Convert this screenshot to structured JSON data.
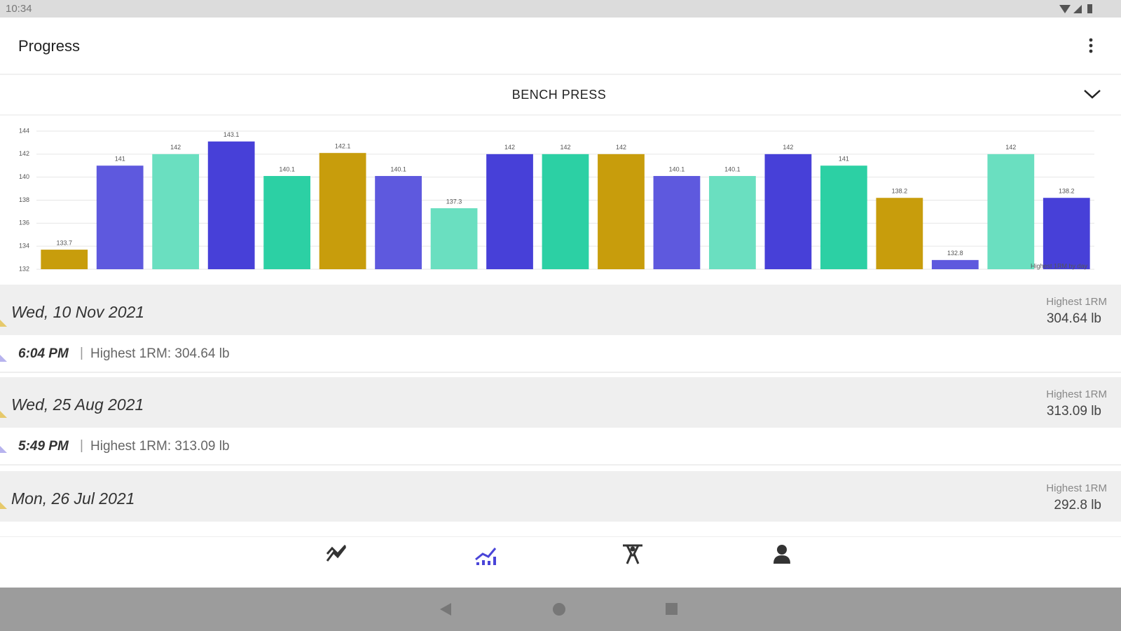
{
  "status_bar": {
    "time": "10:34"
  },
  "app_bar": {
    "title": "Progress"
  },
  "selector": {
    "label": "BENCH PRESS"
  },
  "chart_data": {
    "type": "bar",
    "categories": [
      null,
      null,
      null,
      null,
      null,
      null,
      null,
      null,
      null,
      null,
      null,
      null,
      null,
      null,
      null,
      null,
      null,
      null,
      null
    ],
    "values": [
      133.7,
      141,
      142,
      143.1,
      140.1,
      142.1,
      140.1,
      137.3,
      142,
      142,
      142,
      140.1,
      140.1,
      142,
      141,
      138.2,
      132.8,
      142,
      138.2
    ],
    "colors": [
      "#c89d0c",
      "#5e59de",
      "#6adfc0",
      "#4740d8",
      "#2cd0a4",
      "#c89d0c",
      "#5e59de",
      "#6adfc0",
      "#4740d8",
      "#2cd0a4",
      "#c89d0c",
      "#5e59de",
      "#6adfc0",
      "#4740d8",
      "#2cd0a4",
      "#c89d0c",
      "#5e59de",
      "#6adfc0",
      "#4740d8"
    ],
    "ylim": [
      132,
      144
    ],
    "yticks": [
      132,
      134,
      136,
      138,
      140,
      142,
      144
    ],
    "grid": true,
    "legend": "Highest 1RM by day"
  },
  "sessions": [
    {
      "date": "Wed, 10 Nov 2021",
      "summary_label": "Highest 1RM",
      "summary_value": "304.64 lb",
      "time": "6:04 PM",
      "detail": "Highest 1RM: 304.64 lb"
    },
    {
      "date": "Wed, 25 Aug 2021",
      "summary_label": "Highest 1RM",
      "summary_value": "313.09 lb",
      "time": "5:49 PM",
      "detail": "Highest 1RM: 313.09 lb"
    },
    {
      "date": "Mon, 26 Jul 2021",
      "summary_label": "Highest 1RM",
      "summary_value": "292.8 lb"
    }
  ]
}
